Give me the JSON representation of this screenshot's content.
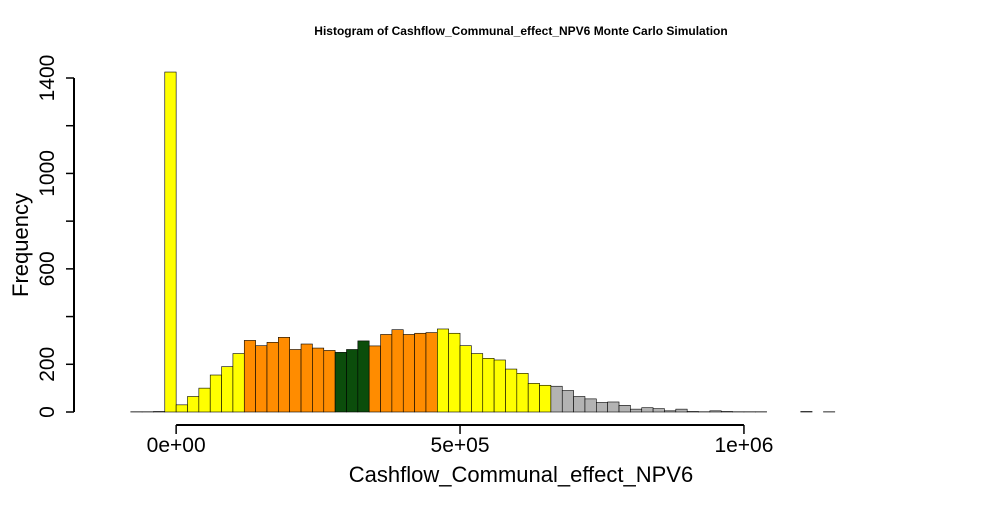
{
  "chart_data": {
    "type": "bar",
    "title": "Histogram of  Cashflow_Communal_effect_NPV6  Monte Carlo Simulation",
    "xlabel": "Cashflow_Communal_effect_NPV6",
    "ylabel": "Frequency",
    "xlim": [
      -120000,
      1340000
    ],
    "ylim": [
      0,
      1400
    ],
    "bin_width": 20000,
    "x_ticks": [
      0,
      500000,
      1000000
    ],
    "x_tick_labels": [
      "0e+00",
      "5e+05",
      "1e+06"
    ],
    "y_ticks": [
      0,
      200,
      600,
      1000,
      1400
    ],
    "y_tick_labels": [
      "0",
      "200",
      "600",
      "1000",
      "1400"
    ],
    "y_minor_ticks": [
      400,
      800,
      1200
    ],
    "colors": {
      "yellow": "#ffff00",
      "orange": "#ff8c00",
      "dark_green": "#0b4d0b",
      "gray": "#b3b3b3"
    },
    "series": [
      {
        "bins": [
          {
            "x0": -120000,
            "count": 0,
            "color": "yellow"
          },
          {
            "x0": -100000,
            "count": 0,
            "color": "yellow"
          },
          {
            "x0": -80000,
            "count": 1,
            "color": "yellow"
          },
          {
            "x0": -60000,
            "count": 1,
            "color": "yellow"
          },
          {
            "x0": -40000,
            "count": 2,
            "color": "yellow"
          },
          {
            "x0": -20000,
            "count": 1425,
            "color": "yellow"
          },
          {
            "x0": 0,
            "count": 30,
            "color": "yellow"
          },
          {
            "x0": 20000,
            "count": 65,
            "color": "yellow"
          },
          {
            "x0": 40000,
            "count": 100,
            "color": "yellow"
          },
          {
            "x0": 60000,
            "count": 155,
            "color": "yellow"
          },
          {
            "x0": 80000,
            "count": 190,
            "color": "yellow"
          },
          {
            "x0": 100000,
            "count": 245,
            "color": "yellow"
          },
          {
            "x0": 120000,
            "count": 300,
            "color": "orange"
          },
          {
            "x0": 140000,
            "count": 278,
            "color": "orange"
          },
          {
            "x0": 160000,
            "count": 292,
            "color": "orange"
          },
          {
            "x0": 180000,
            "count": 313,
            "color": "orange"
          },
          {
            "x0": 200000,
            "count": 262,
            "color": "orange"
          },
          {
            "x0": 220000,
            "count": 285,
            "color": "orange"
          },
          {
            "x0": 240000,
            "count": 268,
            "color": "orange"
          },
          {
            "x0": 260000,
            "count": 258,
            "color": "orange"
          },
          {
            "x0": 280000,
            "count": 250,
            "color": "dark_green"
          },
          {
            "x0": 300000,
            "count": 262,
            "color": "dark_green"
          },
          {
            "x0": 320000,
            "count": 298,
            "color": "dark_green"
          },
          {
            "x0": 340000,
            "count": 277,
            "color": "orange"
          },
          {
            "x0": 360000,
            "count": 325,
            "color": "orange"
          },
          {
            "x0": 380000,
            "count": 345,
            "color": "orange"
          },
          {
            "x0": 400000,
            "count": 325,
            "color": "orange"
          },
          {
            "x0": 420000,
            "count": 330,
            "color": "orange"
          },
          {
            "x0": 440000,
            "count": 333,
            "color": "orange"
          },
          {
            "x0": 460000,
            "count": 348,
            "color": "yellow"
          },
          {
            "x0": 480000,
            "count": 330,
            "color": "yellow"
          },
          {
            "x0": 500000,
            "count": 278,
            "color": "yellow"
          },
          {
            "x0": 520000,
            "count": 245,
            "color": "yellow"
          },
          {
            "x0": 540000,
            "count": 225,
            "color": "yellow"
          },
          {
            "x0": 560000,
            "count": 218,
            "color": "yellow"
          },
          {
            "x0": 580000,
            "count": 180,
            "color": "yellow"
          },
          {
            "x0": 600000,
            "count": 162,
            "color": "yellow"
          },
          {
            "x0": 620000,
            "count": 120,
            "color": "yellow"
          },
          {
            "x0": 640000,
            "count": 112,
            "color": "yellow"
          },
          {
            "x0": 660000,
            "count": 108,
            "color": "gray"
          },
          {
            "x0": 680000,
            "count": 90,
            "color": "gray"
          },
          {
            "x0": 700000,
            "count": 65,
            "color": "gray"
          },
          {
            "x0": 720000,
            "count": 55,
            "color": "gray"
          },
          {
            "x0": 740000,
            "count": 40,
            "color": "gray"
          },
          {
            "x0": 760000,
            "count": 42,
            "color": "gray"
          },
          {
            "x0": 780000,
            "count": 28,
            "color": "gray"
          },
          {
            "x0": 800000,
            "count": 12,
            "color": "gray"
          },
          {
            "x0": 820000,
            "count": 18,
            "color": "gray"
          },
          {
            "x0": 840000,
            "count": 14,
            "color": "gray"
          },
          {
            "x0": 860000,
            "count": 5,
            "color": "gray"
          },
          {
            "x0": 880000,
            "count": 12,
            "color": "gray"
          },
          {
            "x0": 900000,
            "count": 2,
            "color": "gray"
          },
          {
            "x0": 920000,
            "count": 1,
            "color": "gray"
          },
          {
            "x0": 940000,
            "count": 5,
            "color": "gray"
          },
          {
            "x0": 960000,
            "count": 2,
            "color": "gray"
          },
          {
            "x0": 980000,
            "count": 1,
            "color": "gray"
          },
          {
            "x0": 1000000,
            "count": 1,
            "color": "gray"
          },
          {
            "x0": 1020000,
            "count": 1,
            "color": "gray"
          },
          {
            "x0": 1040000,
            "count": 0,
            "color": "gray"
          },
          {
            "x0": 1060000,
            "count": 0,
            "color": "gray"
          },
          {
            "x0": 1080000,
            "count": 0,
            "color": "gray"
          },
          {
            "x0": 1100000,
            "count": 2,
            "color": "gray"
          },
          {
            "x0": 1120000,
            "count": 0,
            "color": "gray"
          },
          {
            "x0": 1140000,
            "count": 1,
            "color": "gray"
          },
          {
            "x0": 1160000,
            "count": 0,
            "color": "gray"
          },
          {
            "x0": 1180000,
            "count": 0,
            "color": "gray"
          },
          {
            "x0": 1200000,
            "count": 0,
            "color": "gray"
          },
          {
            "x0": 1220000,
            "count": 0,
            "color": "gray"
          },
          {
            "x0": 1240000,
            "count": 0,
            "color": "gray"
          },
          {
            "x0": 1260000,
            "count": 0,
            "color": "gray"
          },
          {
            "x0": 1280000,
            "count": 0,
            "color": "gray"
          },
          {
            "x0": 1300000,
            "count": 0,
            "color": "gray"
          },
          {
            "x0": 1320000,
            "count": 0,
            "color": "gray"
          }
        ]
      }
    ]
  }
}
